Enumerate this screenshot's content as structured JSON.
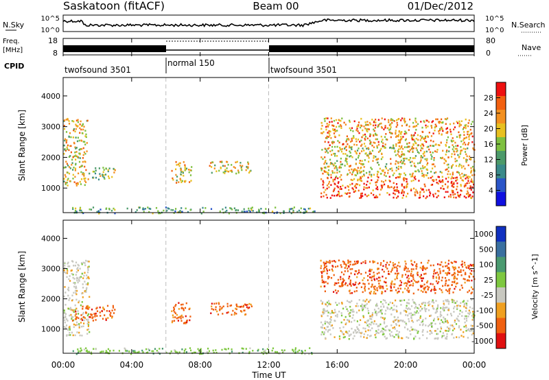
{
  "header": {
    "site": "Saskatoon (fitACF)",
    "beam": "Beam 00",
    "date": "01/Dec/2012"
  },
  "top_panel": {
    "nsky_label": "N.Sky",
    "nsky_ticks": [
      "10^5",
      "10^0"
    ],
    "nsearch_label": "N.Search",
    "nsearch_ticks": [
      "10^5",
      "10^0"
    ],
    "freq_label_1": "Freq.",
    "freq_label_2": "[MHz]",
    "freq_ticks": [
      "18",
      "8"
    ],
    "nave_label": "Nave",
    "nave_ticks": [
      "80",
      "0"
    ],
    "cpid_label": "CPID",
    "cpid_segments": [
      {
        "label": "twofsound 3501",
        "start_hour": 0,
        "end_hour": 6
      },
      {
        "label": "normal 150",
        "start_hour": 6,
        "end_hour": 12
      },
      {
        "label": "twofsound 3501",
        "start_hour": 12,
        "end_hour": 24
      }
    ]
  },
  "x_axis": {
    "label": "Time UT",
    "ticks": [
      "00:00",
      "04:00",
      "08:00",
      "12:00",
      "16:00",
      "20:00",
      "00:00"
    ]
  },
  "power_panel": {
    "ylabel": "Slant Range [km]",
    "yticks": [
      "1000",
      "2000",
      "3000",
      "4000"
    ],
    "colorbar_label": "Power [dB]",
    "colorbar_ticks": [
      "4",
      "8",
      "12",
      "16",
      "20",
      "24",
      "28"
    ],
    "colors": [
      "#1010e0",
      "#2a55c8",
      "#3a8a8a",
      "#4c9a6a",
      "#7ec040",
      "#e8c020",
      "#f39020",
      "#f26010",
      "#ee1010"
    ]
  },
  "velocity_panel": {
    "ylabel": "Slant Range [km]",
    "yticks": [
      "1000",
      "2000",
      "3000",
      "4000"
    ],
    "colorbar_label": "Velocity [m s^-1]",
    "colorbar_ticks": [
      "1000",
      "500",
      "100",
      "25",
      "-25",
      "-100",
      "-500",
      "-1000"
    ],
    "colors": [
      "#1030c0",
      "#3a70a0",
      "#4a9a70",
      "#7ec840",
      "#c8c8c0",
      "#f0a020",
      "#f06010",
      "#e01010"
    ]
  },
  "chart_data": [
    {
      "type": "heatmap",
      "title": "Power",
      "xlabel": "Time UT",
      "ylabel": "Slant Range [km]",
      "xlim": [
        0,
        24
      ],
      "ylim": [
        200,
        4600
      ],
      "colorbar": {
        "label": "Power [dB]",
        "range": [
          0,
          32
        ]
      },
      "regions": [
        {
          "t0": 0.0,
          "t1": 1.4,
          "r0": 1100,
          "r1": 3300,
          "level_db": 20
        },
        {
          "t0": 1.4,
          "t1": 3.0,
          "r0": 1300,
          "r1": 1700,
          "level_db": 16
        },
        {
          "t0": 6.3,
          "t1": 7.5,
          "r0": 1200,
          "r1": 1900,
          "level_db": 18
        },
        {
          "t0": 8.5,
          "t1": 11.0,
          "r0": 1500,
          "r1": 1900,
          "level_db": 18
        },
        {
          "t0": 0.5,
          "t1": 14.8,
          "r0": 200,
          "r1": 400,
          "level_db": 10
        },
        {
          "t0": 15.0,
          "t1": 24.0,
          "r0": 700,
          "r1": 1400,
          "level_db": 28
        },
        {
          "t0": 15.0,
          "t1": 24.0,
          "r0": 1400,
          "r1": 2400,
          "level_db": 18
        },
        {
          "t0": 15.0,
          "t1": 24.0,
          "r0": 2400,
          "r1": 3300,
          "level_db": 22
        }
      ]
    },
    {
      "type": "heatmap",
      "title": "Velocity",
      "xlabel": "Time UT",
      "ylabel": "Slant Range [km]",
      "xlim": [
        0,
        24
      ],
      "ylim": [
        200,
        4600
      ],
      "colorbar": {
        "label": "Velocity [m s^-1]",
        "range": [
          -1000,
          1000
        ]
      },
      "regions": [
        {
          "t0": 0.0,
          "t1": 1.5,
          "r0": 800,
          "r1": 3300,
          "level_ms": 0
        },
        {
          "t0": 0.5,
          "t1": 3.0,
          "r0": 1300,
          "r1": 1800,
          "level_ms": -300
        },
        {
          "t0": 6.3,
          "t1": 7.5,
          "r0": 1200,
          "r1": 1900,
          "level_ms": -300
        },
        {
          "t0": 8.5,
          "t1": 11.0,
          "r0": 1500,
          "r1": 1900,
          "level_ms": -200
        },
        {
          "t0": 0.5,
          "t1": 14.8,
          "r0": 200,
          "r1": 400,
          "level_ms": 50
        },
        {
          "t0": 15.0,
          "t1": 24.0,
          "r0": 700,
          "r1": 2000,
          "level_ms": 0
        },
        {
          "t0": 15.0,
          "t1": 24.0,
          "r0": 2200,
          "r1": 3300,
          "level_ms": -400
        }
      ]
    }
  ]
}
